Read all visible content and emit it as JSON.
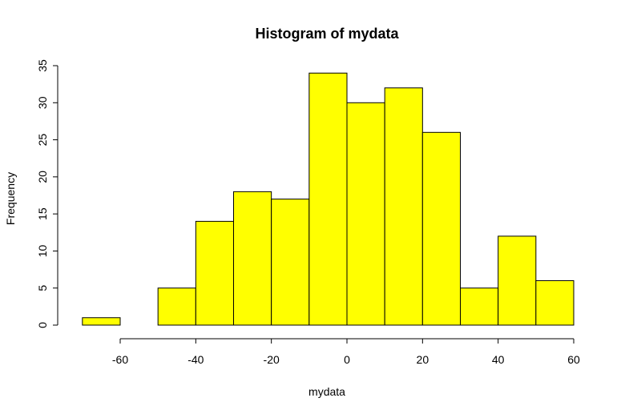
{
  "chart_data": {
    "type": "bar",
    "title": "Histogram of mydata",
    "xlabel": "mydata",
    "ylabel": "Frequency",
    "bar_color": "#ffff00",
    "bin_edges": [
      -70,
      -60,
      -50,
      -40,
      -30,
      -20,
      -10,
      0,
      10,
      20,
      30,
      40,
      50,
      60
    ],
    "values": [
      1,
      0,
      5,
      14,
      18,
      17,
      34,
      30,
      32,
      26,
      5,
      12,
      6
    ],
    "xlim": [
      -70,
      60
    ],
    "ylim": [
      0,
      35
    ],
    "x_ticks": [
      -60,
      -40,
      -20,
      0,
      20,
      40,
      60
    ],
    "x_tick_labels": [
      "-60",
      "-40",
      "-20",
      "0",
      "20",
      "40",
      "60"
    ],
    "y_ticks": [
      0,
      5,
      10,
      15,
      20,
      25,
      30,
      35
    ],
    "y_tick_labels": [
      "0",
      "5",
      "10",
      "15",
      "20",
      "25",
      "30",
      "35"
    ],
    "grid": false
  }
}
